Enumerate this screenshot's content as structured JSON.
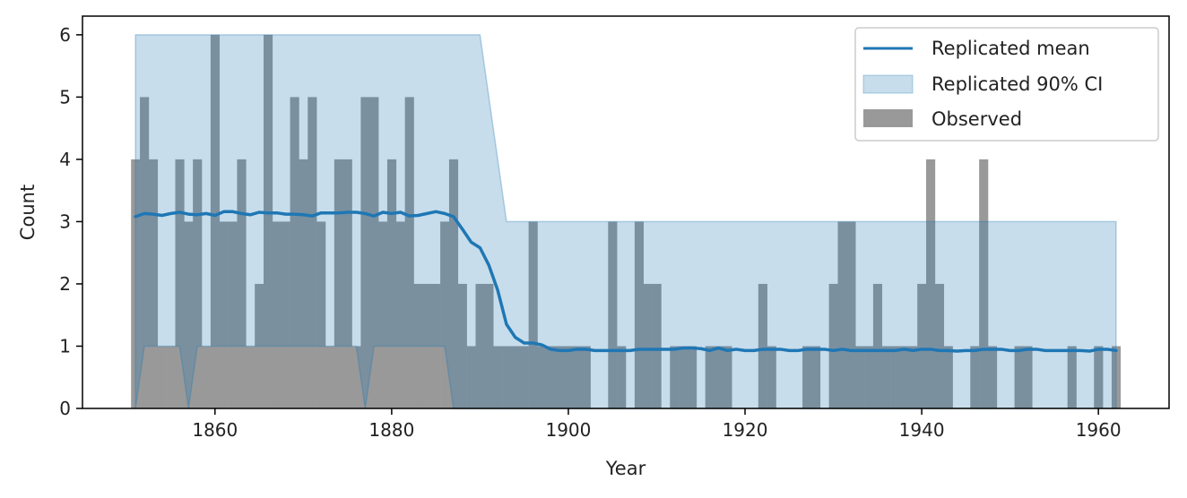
{
  "chart_data": {
    "type": "bar",
    "xlabel": "Year",
    "ylabel": "Count",
    "xlim": [
      1845,
      1968
    ],
    "ylim": [
      0,
      6.3
    ],
    "xticks": [
      1860,
      1880,
      1900,
      1920,
      1940,
      1960
    ],
    "yticks": [
      0,
      1,
      2,
      3,
      4,
      5,
      6
    ],
    "grid": false,
    "legend_position": "top-right",
    "colors": {
      "observed": "#999999",
      "mean": "#1f77b4",
      "ci_fill": "#1f77b4",
      "axis": "#000000"
    },
    "legend": [
      {
        "label": "Replicated mean",
        "kind": "line"
      },
      {
        "label": "Replicated 90% CI",
        "kind": "band"
      },
      {
        "label": "Observed",
        "kind": "bar"
      }
    ],
    "series": [
      {
        "name": "Observed",
        "kind": "bar",
        "x": [
          1851,
          1852,
          1853,
          1854,
          1855,
          1856,
          1857,
          1858,
          1859,
          1860,
          1861,
          1862,
          1863,
          1864,
          1865,
          1866,
          1867,
          1868,
          1869,
          1870,
          1871,
          1872,
          1873,
          1874,
          1875,
          1876,
          1877,
          1878,
          1879,
          1880,
          1881,
          1882,
          1883,
          1884,
          1885,
          1886,
          1887,
          1888,
          1889,
          1890,
          1891,
          1892,
          1893,
          1894,
          1895,
          1896,
          1897,
          1898,
          1899,
          1900,
          1901,
          1902,
          1903,
          1904,
          1905,
          1906,
          1907,
          1908,
          1909,
          1910,
          1911,
          1912,
          1913,
          1914,
          1915,
          1916,
          1917,
          1918,
          1919,
          1920,
          1921,
          1922,
          1923,
          1924,
          1925,
          1926,
          1927,
          1928,
          1929,
          1930,
          1931,
          1932,
          1933,
          1934,
          1935,
          1936,
          1937,
          1938,
          1939,
          1940,
          1941,
          1942,
          1943,
          1944,
          1945,
          1946,
          1947,
          1948,
          1949,
          1950,
          1951,
          1952,
          1953,
          1954,
          1955,
          1956,
          1957,
          1958,
          1959,
          1960,
          1961,
          1962
        ],
        "values": [
          4,
          5,
          4,
          1,
          1,
          4,
          3,
          4,
          1,
          6,
          3,
          3,
          4,
          1,
          2,
          6,
          3,
          3,
          5,
          4,
          5,
          3,
          1,
          4,
          4,
          1,
          5,
          5,
          3,
          4,
          3,
          5,
          2,
          2,
          2,
          3,
          4,
          2,
          1,
          2,
          2,
          1,
          1,
          1,
          1,
          3,
          1,
          1,
          1,
          1,
          1,
          1,
          0,
          0,
          3,
          1,
          0,
          3,
          2,
          2,
          0,
          1,
          1,
          1,
          0,
          1,
          1,
          1,
          0,
          0,
          0,
          2,
          1,
          0,
          0,
          0,
          1,
          1,
          0,
          2,
          3,
          3,
          1,
          1,
          2,
          1,
          1,
          1,
          1,
          2,
          4,
          2,
          1,
          0,
          0,
          1,
          4,
          1,
          0,
          0,
          1,
          1,
          0,
          0,
          0,
          0,
          1,
          0,
          0,
          1,
          0,
          1
        ]
      },
      {
        "name": "Replicated mean",
        "kind": "line",
        "x": [
          1851,
          1852,
          1853,
          1854,
          1855,
          1856,
          1857,
          1858,
          1859,
          1860,
          1861,
          1862,
          1863,
          1864,
          1865,
          1866,
          1867,
          1868,
          1869,
          1870,
          1871,
          1872,
          1873,
          1874,
          1875,
          1876,
          1877,
          1878,
          1879,
          1880,
          1881,
          1882,
          1883,
          1884,
          1885,
          1886,
          1887,
          1888,
          1889,
          1890,
          1891,
          1892,
          1893,
          1894,
          1895,
          1896,
          1897,
          1898,
          1899,
          1900,
          1901,
          1902,
          1903,
          1904,
          1905,
          1906,
          1907,
          1908,
          1909,
          1910,
          1911,
          1912,
          1913,
          1914,
          1915,
          1916,
          1917,
          1918,
          1919,
          1920,
          1921,
          1922,
          1923,
          1924,
          1925,
          1926,
          1927,
          1928,
          1929,
          1930,
          1931,
          1932,
          1933,
          1934,
          1935,
          1936,
          1937,
          1938,
          1939,
          1940,
          1941,
          1942,
          1943,
          1944,
          1945,
          1946,
          1947,
          1948,
          1949,
          1950,
          1951,
          1952,
          1953,
          1954,
          1955,
          1956,
          1957,
          1958,
          1959,
          1960,
          1961,
          1962
        ],
        "values": [
          3.08,
          3.13,
          3.12,
          3.1,
          3.13,
          3.15,
          3.12,
          3.11,
          3.13,
          3.1,
          3.16,
          3.16,
          3.13,
          3.11,
          3.15,
          3.14,
          3.14,
          3.12,
          3.12,
          3.11,
          3.09,
          3.14,
          3.14,
          3.14,
          3.15,
          3.15,
          3.13,
          3.09,
          3.15,
          3.13,
          3.15,
          3.09,
          3.1,
          3.13,
          3.16,
          3.13,
          3.08,
          2.88,
          2.67,
          2.58,
          2.3,
          1.9,
          1.35,
          1.14,
          1.05,
          1.05,
          1.02,
          0.95,
          0.93,
          0.93,
          0.95,
          0.95,
          0.93,
          0.93,
          0.93,
          0.93,
          0.93,
          0.95,
          0.95,
          0.95,
          0.95,
          0.95,
          0.97,
          0.97,
          0.96,
          0.93,
          0.97,
          0.93,
          0.95,
          0.93,
          0.93,
          0.95,
          0.95,
          0.95,
          0.93,
          0.93,
          0.95,
          0.95,
          0.95,
          0.93,
          0.95,
          0.93,
          0.93,
          0.93,
          0.93,
          0.93,
          0.93,
          0.95,
          0.93,
          0.95,
          0.95,
          0.93,
          0.93,
          0.92,
          0.93,
          0.93,
          0.95,
          0.95,
          0.95,
          0.93,
          0.93,
          0.95,
          0.95,
          0.93,
          0.93,
          0.93,
          0.93,
          0.93,
          0.92,
          0.95,
          0.95,
          0.93
        ]
      },
      {
        "name": "Replicated 90% CI",
        "kind": "band",
        "x": [
          1851,
          1852,
          1853,
          1854,
          1855,
          1856,
          1857,
          1858,
          1859,
          1860,
          1861,
          1862,
          1863,
          1864,
          1865,
          1866,
          1867,
          1868,
          1869,
          1870,
          1871,
          1872,
          1873,
          1874,
          1875,
          1876,
          1877,
          1878,
          1879,
          1880,
          1881,
          1882,
          1883,
          1884,
          1885,
          1886,
          1887,
          1888,
          1889,
          1890,
          1891,
          1892,
          1893,
          1894,
          1895,
          1896,
          1897,
          1898,
          1899,
          1900,
          1901,
          1902,
          1903,
          1904,
          1905,
          1906,
          1907,
          1908,
          1909,
          1910,
          1911,
          1912,
          1913,
          1914,
          1915,
          1916,
          1917,
          1918,
          1919,
          1920,
          1921,
          1922,
          1923,
          1924,
          1925,
          1926,
          1927,
          1928,
          1929,
          1930,
          1931,
          1932,
          1933,
          1934,
          1935,
          1936,
          1937,
          1938,
          1939,
          1940,
          1941,
          1942,
          1943,
          1944,
          1945,
          1946,
          1947,
          1948,
          1949,
          1950,
          1951,
          1952,
          1953,
          1954,
          1955,
          1956,
          1957,
          1958,
          1959,
          1960,
          1961,
          1962
        ],
        "lower": [
          0,
          1,
          1,
          1,
          1,
          1,
          0,
          1,
          1,
          1,
          1,
          1,
          1,
          1,
          1,
          1,
          1,
          1,
          1,
          1,
          1,
          1,
          1,
          1,
          1,
          1,
          0,
          1,
          1,
          1,
          1,
          1,
          1,
          1,
          1,
          1,
          0,
          0,
          0,
          0,
          0,
          0,
          0,
          0,
          0,
          0,
          0,
          0,
          0,
          0,
          0,
          0,
          0,
          0,
          0,
          0,
          0,
          0,
          0,
          0,
          0,
          0,
          0,
          0,
          0,
          0,
          0,
          0,
          0,
          0,
          0,
          0,
          0,
          0,
          0,
          0,
          0,
          0,
          0,
          0,
          0,
          0,
          0,
          0,
          0,
          0,
          0,
          0,
          0,
          0,
          0,
          0,
          0,
          0,
          0,
          0,
          0,
          0,
          0,
          0,
          0,
          0,
          0,
          0,
          0,
          0,
          0,
          0,
          0,
          0,
          0,
          0
        ],
        "upper": [
          6,
          6,
          6,
          6,
          6,
          6,
          6,
          6,
          6,
          6,
          6,
          6,
          6,
          6,
          6,
          6,
          6,
          6,
          6,
          6,
          6,
          6,
          6,
          6,
          6,
          6,
          6,
          6,
          6,
          6,
          6,
          6,
          6,
          6,
          6,
          6,
          6,
          6,
          6,
          6,
          5,
          4,
          3,
          3,
          3,
          3,
          3,
          3,
          3,
          3,
          3,
          3,
          3,
          3,
          3,
          3,
          3,
          3,
          3,
          3,
          3,
          3,
          3,
          3,
          3,
          3,
          3,
          3,
          3,
          3,
          3,
          3,
          3,
          3,
          3,
          3,
          3,
          3,
          3,
          3,
          3,
          3,
          3,
          3,
          3,
          3,
          3,
          3,
          3,
          3,
          3,
          3,
          3,
          3,
          3,
          3,
          3,
          3,
          3,
          3,
          3,
          3,
          3,
          3,
          3,
          3,
          3,
          3,
          3,
          3,
          3,
          3
        ]
      }
    ]
  }
}
